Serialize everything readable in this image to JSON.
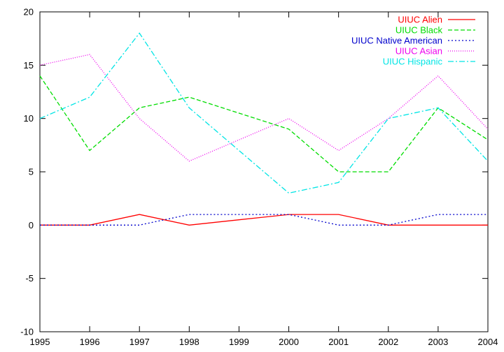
{
  "chart_data": {
    "type": "line",
    "title": "",
    "xlabel": "",
    "ylabel": "",
    "x": [
      1995,
      1996,
      1997,
      1998,
      1999,
      2000,
      2001,
      2002,
      2003,
      2004
    ],
    "xlim": [
      1995,
      2004
    ],
    "ylim": [
      -10,
      20
    ],
    "xticks": [
      "1995",
      "1996",
      "1997",
      "1998",
      "1999",
      "2000",
      "2001",
      "2002",
      "2003",
      "2004"
    ],
    "yticks": [
      "-10",
      "-5",
      "0",
      "5",
      "10",
      "15",
      "20"
    ],
    "grid": false,
    "legend_position": "top-right",
    "series": [
      {
        "name": "UIUC Alien",
        "color": "#ff0000",
        "dash": "solid",
        "values": [
          0,
          0,
          1,
          0,
          0.5,
          1,
          1,
          0,
          0,
          0
        ]
      },
      {
        "name": "UIUC Black",
        "color": "#00dd00",
        "dash": "dashed",
        "values": [
          14,
          7,
          11,
          12,
          10.5,
          9,
          5,
          5,
          11,
          8
        ]
      },
      {
        "name": "UIUC Native American",
        "color": "#0000cc",
        "dash": "dotted",
        "values": [
          0,
          0,
          0,
          1,
          1,
          1,
          0,
          0,
          1,
          1
        ]
      },
      {
        "name": "UIUC Asian",
        "color": "#ee00ee",
        "dash": "fine-dotted",
        "values": [
          15,
          16,
          10,
          6,
          8,
          10,
          7,
          10,
          14,
          9
        ]
      },
      {
        "name": "UIUC Hispanic",
        "color": "#00e5e5",
        "dash": "dash-dot",
        "values": [
          10,
          12,
          18,
          11,
          7,
          3,
          4,
          10,
          11,
          6
        ]
      }
    ]
  }
}
